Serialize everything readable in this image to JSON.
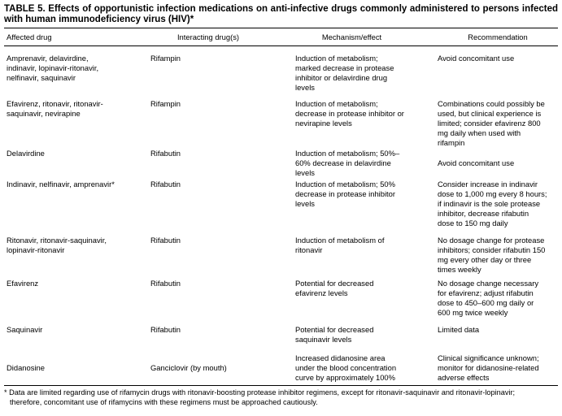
{
  "document": {
    "title": "TABLE 5. Effects of opportunistic infection medications on anti-infective drugs commonly administered to persons infected with human immunodeficiency virus (HIV)*",
    "columns": [
      "Affected drug",
      "Interacting drug(s)",
      "Mechanism/effect",
      "Recommendation"
    ],
    "rows": [
      {
        "affected": "Amprenavir, delavirdine,\nindinavir, lopinavir-ritonavir,\nnelfinavir, saquinavir",
        "interacting": "Rifampin",
        "mechanism": "Induction of metabolism;\nmarked decrease in protease\ninhibitor or delavirdine drug\nlevels",
        "recommendation": "Avoid concomitant use"
      },
      {
        "affected": "Efavirenz, ritonavir, ritonavir-\nsaquinavir, nevirapine",
        "interacting": "Rifampin",
        "mechanism": "Induction of metabolism;\ndecrease in protease inhibitor or\nnevirapine levels",
        "recommendation": "Combinations could possibly be\nused, but clinical experience is\nlimited; consider efavirenz 800\nmg daily when used with\nrifampin"
      },
      {
        "affected": "Delavirdine",
        "interacting": "Rifabutin",
        "mechanism": "Induction of metabolism; 50%–\n60% decrease in delavirdine\nlevels",
        "recommendation": "Avoid concomitant use"
      },
      {
        "affected": "Indinavir, nelfinavir, amprenavir*",
        "interacting": "Rifabutin",
        "mechanism": "Induction of metabolism; 50%\ndecrease in protease inhibitor\nlevels",
        "recommendation": "Consider increase in indinavir\ndose to 1,000 mg every 8 hours;\nif indinavir is the sole protease\ninhibitor, decrease rifabutin\ndose to 150 mg daily"
      },
      {
        "affected": "Ritonavir, ritonavir-saquinavir,\nlopinavir-ritonavir",
        "interacting": "Rifabutin",
        "mechanism": "Induction of metabolism of\nritonavir",
        "recommendation": "No dosage change for protease\ninhibitors; consider rifabutin 150\nmg every other day or three\ntimes weekly"
      },
      {
        "affected": "Efavirenz",
        "interacting": "Rifabutin",
        "mechanism": "Potential for decreased\nefavirenz levels",
        "recommendation": "No dosage change necessary\nfor efavirenz; adjust rifabutin\ndose to 450–600 mg daily or\n600 mg twice weekly"
      },
      {
        "affected": "Saquinavir",
        "interacting": "Rifabutin",
        "mechanism": "Potential for decreased\nsaquinavir levels",
        "recommendation": "Limited data"
      },
      {
        "affected": "Didanosine",
        "interacting": "Ganciclovir (by mouth)",
        "mechanism": "Increased didanosine area\nunder the blood concentration\ncurve by approximately 100%",
        "recommendation": "Clinical significance unknown;\nmonitor for didanosine-related\nadverse effects"
      }
    ],
    "footnote": "* Data are limited regarding use of rifamycin drugs with ritonavir-boosting protease inhibitor regimens, except for ritonavir-saquinavir and ritonavir-lopinavir;\ntherefore, concomitant use of rifamycins with these regimens must be approached cautiously.",
    "colors": {
      "text": "#000000",
      "background": "#ffffff",
      "rule": "#000000"
    }
  }
}
